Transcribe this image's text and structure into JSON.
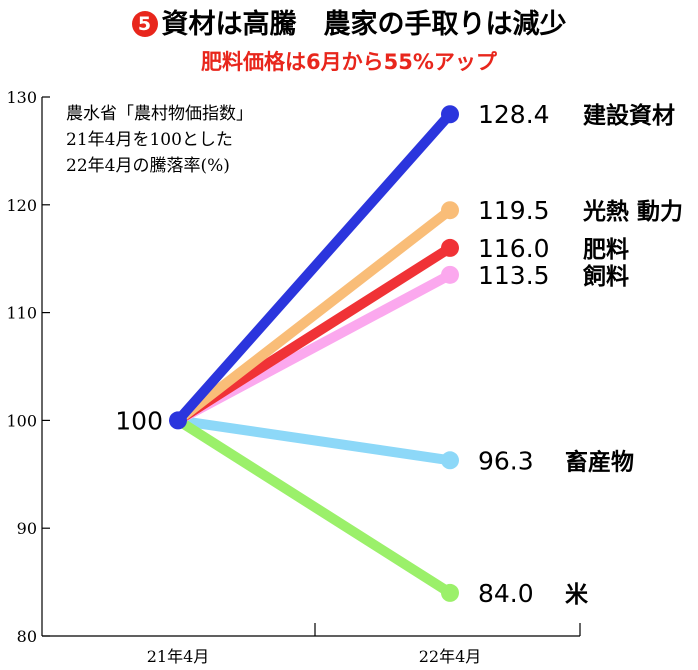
{
  "header": {
    "badge": "5",
    "title": "資材は高騰　農家の手取りは減少",
    "subtitle": "肥料価格は6月から55%アップ"
  },
  "note": {
    "line1": "農水省「農村物価指数」",
    "line2": "21年4月を100とした",
    "line3": "22年4月の騰落率(%)"
  },
  "chart_data": {
    "type": "line",
    "categories": [
      "21年4月",
      "22年4月"
    ],
    "ylim": [
      80,
      130
    ],
    "yticks": [
      80,
      90,
      100,
      110,
      120,
      130
    ],
    "start_label": "100",
    "grid": false,
    "series": [
      {
        "name": "建設資材",
        "values": [
          100,
          128.4
        ],
        "label": "128.4",
        "color": "#2b35dd"
      },
      {
        "name": "光熱 動力",
        "values": [
          100,
          119.5
        ],
        "label": "119.5",
        "color": "#f9bd78"
      },
      {
        "name": "肥料",
        "values": [
          100,
          116.0
        ],
        "label": "116.0",
        "color": "#f03236"
      },
      {
        "name": "飼料",
        "values": [
          100,
          113.5
        ],
        "label": "113.5",
        "color": "#fba8ee"
      },
      {
        "name": "畜産物",
        "values": [
          100,
          96.3
        ],
        "label": "96.3",
        "color": "#8dd8f8"
      },
      {
        "name": "米",
        "values": [
          100,
          84.0
        ],
        "label": "84.0",
        "color": "#9bf06a"
      }
    ]
  }
}
